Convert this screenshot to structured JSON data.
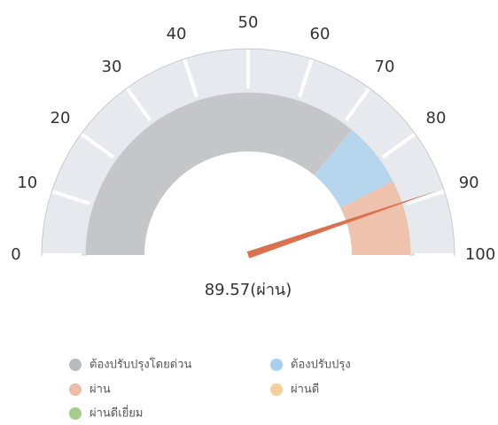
{
  "chart_data": {
    "type": "gauge",
    "value": 89.57,
    "value_label": "89.57(ผ่าน)",
    "needle_color": "#d9714e",
    "ylim": [
      0,
      100
    ],
    "yticks": [
      0,
      10,
      20,
      30,
      40,
      50,
      60,
      70,
      80,
      90,
      100
    ],
    "ring_color": "#e6e9ee",
    "bands": [
      {
        "color": "#c4c6c9",
        "from": 0,
        "to": 72
      },
      {
        "color": "#b6d6ee",
        "from": 72,
        "to": 85
      },
      {
        "color": "#eec2ac",
        "from": 85,
        "to": 100
      }
    ],
    "legend": [
      {
        "name": "ต้องปรับปรุงโดยด่วน",
        "color": "#b8babd"
      },
      {
        "name": "ต้องปรับปรุง",
        "color": "#a9cfee"
      },
      {
        "name": "ผ่าน",
        "color": "#eebda8"
      },
      {
        "name": "ผ่านดี",
        "color": "#f5cf9a"
      },
      {
        "name": "ผ่านดีเยี่ยม",
        "color": "#a8cc8c"
      }
    ]
  }
}
